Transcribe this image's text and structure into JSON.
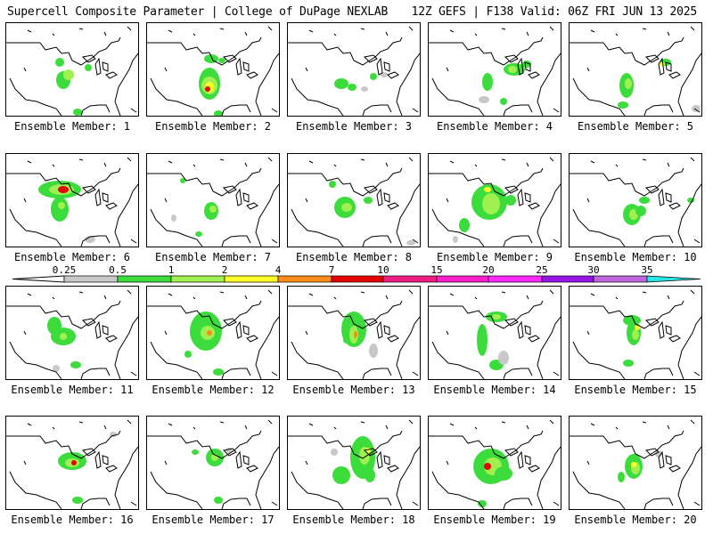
{
  "header": {
    "left": "Supercell Composite Parameter | College of DuPage NEXLAB",
    "right": "12Z GEFS | F138 Valid: 06Z FRI JUN 13 2025"
  },
  "colorbar": {
    "labels": [
      "0.25",
      "0.5",
      "1",
      "2",
      "4",
      "7",
      "10",
      "15",
      "20",
      "25",
      "30",
      "35"
    ],
    "colors": [
      "#c8c8c8",
      "#3cdc3c",
      "#a0f050",
      "#ffff28",
      "#ff8c14",
      "#e60000",
      "#f01e82",
      "#ff1ec8",
      "#ff28ff",
      "#9614e6",
      "#be64dc",
      "#28e6e6"
    ]
  },
  "panels": [
    {
      "label": "Ensemble Member: 1"
    },
    {
      "label": "Ensemble Member: 2"
    },
    {
      "label": "Ensemble Member: 3"
    },
    {
      "label": "Ensemble Member: 4"
    },
    {
      "label": "Ensemble Member: 5"
    },
    {
      "label": "Ensemble Member: 6"
    },
    {
      "label": "Ensemble Member: 7"
    },
    {
      "label": "Ensemble Member: 8"
    },
    {
      "label": "Ensemble Member: 9"
    },
    {
      "label": "Ensemble Member: 10"
    },
    {
      "label": "Ensemble Member: 11"
    },
    {
      "label": "Ensemble Member: 12"
    },
    {
      "label": "Ensemble Member: 13"
    },
    {
      "label": "Ensemble Member: 14"
    },
    {
      "label": "Ensemble Member: 15"
    },
    {
      "label": "Ensemble Member: 16"
    },
    {
      "label": "Ensemble Member: 17"
    },
    {
      "label": "Ensemble Member: 18"
    },
    {
      "label": "Ensemble Member: 19"
    },
    {
      "label": "Ensemble Member: 20"
    }
  ]
}
